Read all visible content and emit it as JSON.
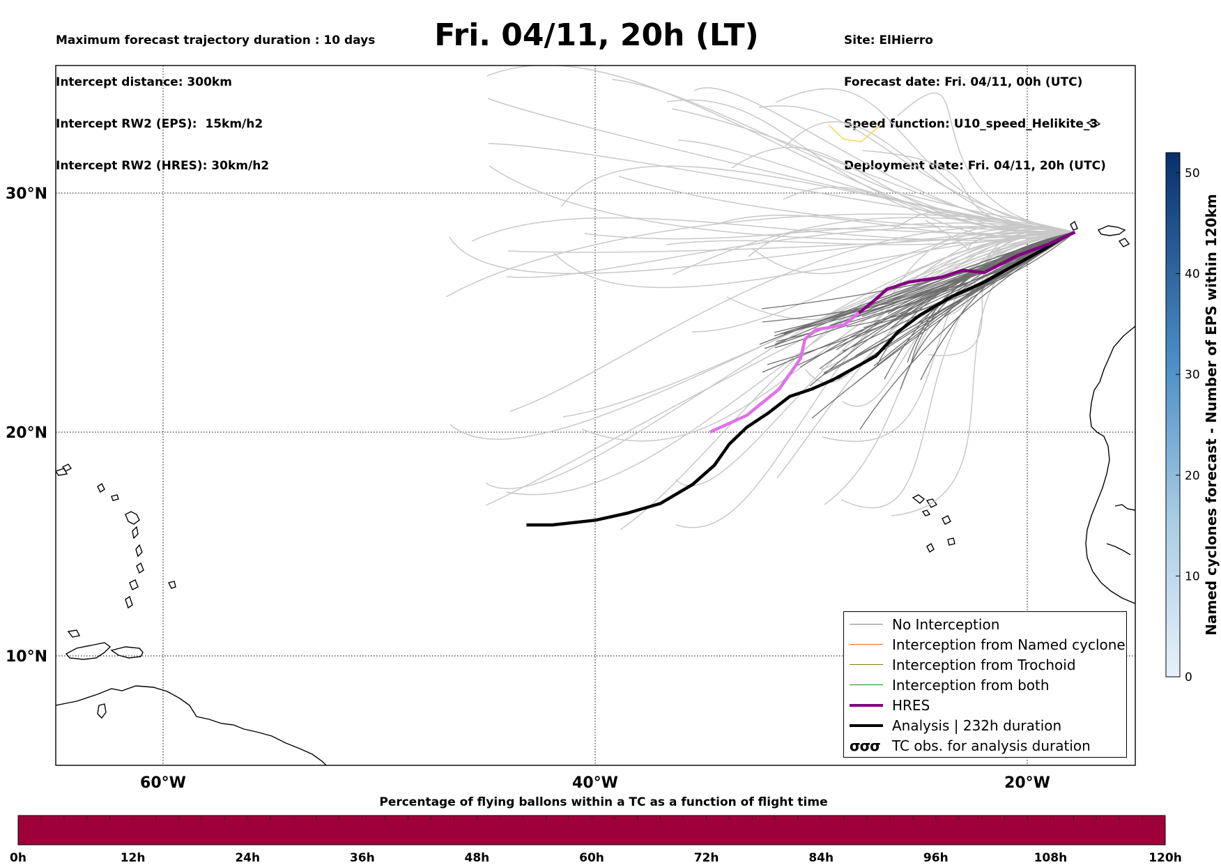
{
  "header_left": {
    "max_duration": "Maximum forecast trajectory duration : 10 days",
    "intercept_distance": "Intercept distance: 300km",
    "rw2_eps": "Intercept RW2 (EPS):  15km/h2",
    "rw2_hres": "Intercept RW2 (HRES): 30km/h2"
  },
  "title": "Fri. 04/11, 20h (LT)",
  "header_right": {
    "site": "Site: ElHierro",
    "forecast_date": "Forecast date: Fri. 04/11, 00h (UTC)",
    "speed_function": "Speed function: U10_speed_Helikite_3",
    "deployment_date": "Deployment date: Fri. 04/11, 20h (UTC)"
  },
  "map": {
    "lon_labels": [
      "60°W",
      "40°W",
      "20°W"
    ],
    "lat_labels": [
      "30°N",
      "20°N",
      "10°N"
    ],
    "lon_range": [
      -65,
      -15
    ],
    "lat_range": [
      5.3,
      34.7
    ],
    "launch_site": {
      "lon": -17.8,
      "lat": 27.7
    },
    "analysis_track": [
      [
        -17.8,
        27.7
      ],
      [
        -18.5,
        27.4
      ],
      [
        -19.2,
        27.0
      ],
      [
        -20.0,
        26.6
      ],
      [
        -21.0,
        26.1
      ],
      [
        -22.0,
        25.6
      ],
      [
        -23.5,
        25.0
      ],
      [
        -25.0,
        24.2
      ],
      [
        -26.0,
        23.5
      ],
      [
        -27.0,
        22.5
      ],
      [
        -28.0,
        22.0
      ],
      [
        -29.0,
        21.5
      ],
      [
        -30.0,
        21.1
      ],
      [
        -31.0,
        20.8
      ],
      [
        -32.0,
        20.1
      ],
      [
        -33.0,
        19.5
      ],
      [
        -33.8,
        18.8
      ],
      [
        -34.5,
        17.9
      ],
      [
        -35.5,
        17.1
      ],
      [
        -37.0,
        16.3
      ],
      [
        -38.5,
        15.9
      ],
      [
        -40.0,
        15.6
      ],
      [
        -42.0,
        15.4
      ],
      [
        -43.2,
        15.4
      ]
    ],
    "hres_track": [
      [
        -17.8,
        27.7
      ],
      [
        -19.0,
        27.2
      ],
      [
        -20.5,
        26.7
      ],
      [
        -22.0,
        26.0
      ],
      [
        -23.0,
        26.1
      ],
      [
        -24.0,
        25.8
      ],
      [
        -25.5,
        25.6
      ],
      [
        -26.5,
        25.3
      ],
      [
        -27.0,
        24.9
      ],
      [
        -27.8,
        24.3
      ],
      [
        -28.5,
        23.8
      ],
      [
        -29.8,
        23.6
      ],
      [
        -30.3,
        23.2
      ],
      [
        -30.5,
        22.4
      ],
      [
        -30.8,
        22.0
      ],
      [
        -31.5,
        21.1
      ],
      [
        -33.0,
        20.0
      ],
      [
        -34.7,
        19.3
      ]
    ],
    "hres_faded_from_index": 9,
    "yellow_track": [
      [
        -29.2,
        32.2
      ],
      [
        -28.5,
        31.6
      ],
      [
        -27.7,
        31.5
      ],
      [
        -26.8,
        32.2
      ]
    ]
  },
  "legend": {
    "items": [
      {
        "label": "No Interception",
        "color": "#808080",
        "width": 1.5
      },
      {
        "label": "Interception from Named cyclone",
        "color": "#ff5a14",
        "width": 1.5
      },
      {
        "label": "Interception from Trochoid",
        "color": "#7a7a14",
        "width": 1.5
      },
      {
        "label": "Interception from both",
        "color": "#1a8a1a",
        "width": 1.5
      },
      {
        "label": "HRES",
        "color": "#800080",
        "width": 4
      },
      {
        "label": "Analysis | 232h duration",
        "color": "#000000",
        "width": 4
      }
    ],
    "tc_obs_label": "TC obs. for analysis duration"
  },
  "colorbar_right": {
    "label": "Named cyclones forecast - Number of EPS within 120km",
    "ticks": [
      "0",
      "10",
      "20",
      "30",
      "40",
      "50"
    ],
    "max": 52
  },
  "bottom_bar": {
    "title": "Percentage of flying ballons within a TC as a function of flight time",
    "ticks": [
      "0h",
      "12h",
      "24h",
      "36h",
      "48h",
      "60h",
      "72h",
      "84h",
      "96h",
      "108h",
      "120h"
    ],
    "color": "#9e003a"
  }
}
